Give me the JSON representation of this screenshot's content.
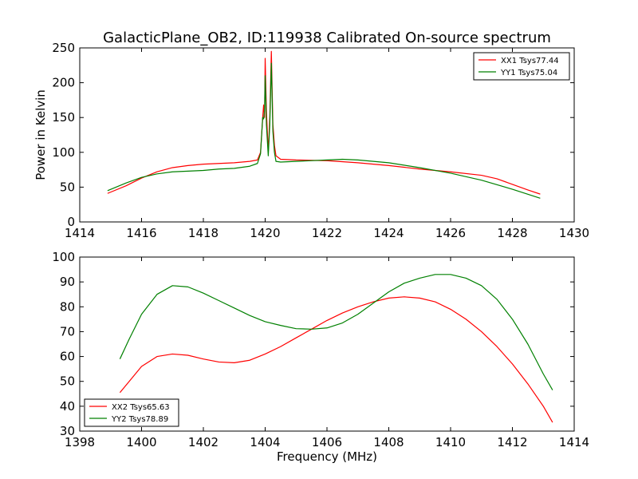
{
  "figure": {
    "title": "GalacticPlane_OB2, ID:119938 Calibrated On-source spectrum",
    "bottom_xlabel": "Frequency (MHz)"
  },
  "chart_data": [
    {
      "type": "line",
      "title": "GalacticPlane_OB2, ID:119938 Calibrated On-source spectrum",
      "xlabel": "",
      "ylabel": "Power in Kelvin",
      "xlim": [
        1414,
        1430
      ],
      "ylim": [
        0,
        250
      ],
      "xticks": [
        1414,
        1416,
        1418,
        1420,
        1422,
        1424,
        1426,
        1428,
        1430
      ],
      "yticks": [
        0,
        50,
        100,
        150,
        200,
        250
      ],
      "legend_position": "top-right",
      "grid": false,
      "series": [
        {
          "name": "XX1 Tsys77.44",
          "color": "#ff0000",
          "points": [
            [
              1414.9,
              41
            ],
            [
              1415.5,
              52
            ],
            [
              1416.0,
              63
            ],
            [
              1416.5,
              72
            ],
            [
              1417.0,
              78
            ],
            [
              1417.5,
              81
            ],
            [
              1418.0,
              83
            ],
            [
              1418.5,
              84
            ],
            [
              1419.0,
              85
            ],
            [
              1419.5,
              87
            ],
            [
              1419.75,
              89
            ],
            [
              1419.85,
              100
            ],
            [
              1419.92,
              150
            ],
            [
              1419.95,
              168
            ],
            [
              1419.98,
              150
            ],
            [
              1420.0,
              235
            ],
            [
              1420.04,
              160
            ],
            [
              1420.1,
              100
            ],
            [
              1420.15,
              150
            ],
            [
              1420.2,
              245
            ],
            [
              1420.25,
              140
            ],
            [
              1420.3,
              110
            ],
            [
              1420.35,
              95
            ],
            [
              1420.5,
              90
            ],
            [
              1421.0,
              89
            ],
            [
              1422.0,
              88
            ],
            [
              1423.0,
              85
            ],
            [
              1424.0,
              81
            ],
            [
              1425.0,
              76
            ],
            [
              1426.0,
              72
            ],
            [
              1427.0,
              67
            ],
            [
              1427.5,
              62
            ],
            [
              1428.0,
              54
            ],
            [
              1428.5,
              46
            ],
            [
              1428.9,
              40
            ]
          ]
        },
        {
          "name": "YY1 Tsys75.04",
          "color": "#008000",
          "points": [
            [
              1414.9,
              45
            ],
            [
              1415.5,
              56
            ],
            [
              1416.0,
              64
            ],
            [
              1416.5,
              69
            ],
            [
              1417.0,
              72
            ],
            [
              1417.5,
              73
            ],
            [
              1418.0,
              74
            ],
            [
              1418.5,
              76
            ],
            [
              1419.0,
              77
            ],
            [
              1419.5,
              80
            ],
            [
              1419.75,
              84
            ],
            [
              1419.85,
              98
            ],
            [
              1419.92,
              150
            ],
            [
              1419.95,
              148
            ],
            [
              1419.98,
              160
            ],
            [
              1420.0,
              210
            ],
            [
              1420.04,
              140
            ],
            [
              1420.1,
              95
            ],
            [
              1420.15,
              140
            ],
            [
              1420.2,
              228
            ],
            [
              1420.25,
              130
            ],
            [
              1420.3,
              100
            ],
            [
              1420.35,
              87
            ],
            [
              1420.5,
              86
            ],
            [
              1421.0,
              87
            ],
            [
              1422.0,
              89
            ],
            [
              1422.5,
              90
            ],
            [
              1423.0,
              89
            ],
            [
              1424.0,
              85
            ],
            [
              1425.0,
              78
            ],
            [
              1426.0,
              70
            ],
            [
              1427.0,
              60
            ],
            [
              1428.0,
              47
            ],
            [
              1428.9,
              34
            ]
          ]
        }
      ]
    },
    {
      "type": "line",
      "title": "",
      "xlabel": "Frequency (MHz)",
      "ylabel": "",
      "xlim": [
        1398,
        1414
      ],
      "ylim": [
        30,
        100
      ],
      "xticks": [
        1398,
        1400,
        1402,
        1404,
        1406,
        1408,
        1410,
        1412,
        1414
      ],
      "yticks": [
        30,
        40,
        50,
        60,
        70,
        80,
        90,
        100
      ],
      "legend_position": "bottom-left",
      "grid": false,
      "series": [
        {
          "name": "XX2 Tsys65.63",
          "color": "#ff0000",
          "points": [
            [
              1399.3,
              45.5
            ],
            [
              1399.6,
              50
            ],
            [
              1400.0,
              56
            ],
            [
              1400.5,
              60
            ],
            [
              1401.0,
              61
            ],
            [
              1401.5,
              60.5
            ],
            [
              1402.0,
              59
            ],
            [
              1402.5,
              57.8
            ],
            [
              1403.0,
              57.5
            ],
            [
              1403.5,
              58.5
            ],
            [
              1404.0,
              61
            ],
            [
              1404.5,
              64
            ],
            [
              1405.0,
              67.5
            ],
            [
              1405.5,
              71
            ],
            [
              1406.0,
              74.5
            ],
            [
              1406.5,
              77.5
            ],
            [
              1407.0,
              80
            ],
            [
              1407.5,
              82
            ],
            [
              1408.0,
              83.5
            ],
            [
              1408.5,
              84
            ],
            [
              1409.0,
              83.5
            ],
            [
              1409.5,
              82
            ],
            [
              1410.0,
              79
            ],
            [
              1410.5,
              75
            ],
            [
              1411.0,
              70
            ],
            [
              1411.5,
              64
            ],
            [
              1412.0,
              57
            ],
            [
              1412.5,
              49
            ],
            [
              1413.0,
              40
            ],
            [
              1413.3,
              33.5
            ]
          ]
        },
        {
          "name": "YY2 Tsys78.89",
          "color": "#008000",
          "points": [
            [
              1399.3,
              59
            ],
            [
              1399.6,
              67
            ],
            [
              1400.0,
              77
            ],
            [
              1400.5,
              85
            ],
            [
              1401.0,
              88.5
            ],
            [
              1401.5,
              88
            ],
            [
              1402.0,
              85.5
            ],
            [
              1402.5,
              82.5
            ],
            [
              1403.0,
              79.5
            ],
            [
              1403.5,
              76.5
            ],
            [
              1404.0,
              74
            ],
            [
              1404.5,
              72.5
            ],
            [
              1405.0,
              71.2
            ],
            [
              1405.5,
              71
            ],
            [
              1406.0,
              71.5
            ],
            [
              1406.5,
              73.5
            ],
            [
              1407.0,
              77
            ],
            [
              1407.5,
              81.5
            ],
            [
              1408.0,
              86
            ],
            [
              1408.5,
              89.5
            ],
            [
              1409.0,
              91.5
            ],
            [
              1409.5,
              93
            ],
            [
              1410.0,
              93
            ],
            [
              1410.5,
              91.5
            ],
            [
              1411.0,
              88.5
            ],
            [
              1411.5,
              83
            ],
            [
              1412.0,
              75
            ],
            [
              1412.5,
              65
            ],
            [
              1413.0,
              53
            ],
            [
              1413.3,
              46.5
            ]
          ]
        }
      ]
    }
  ]
}
